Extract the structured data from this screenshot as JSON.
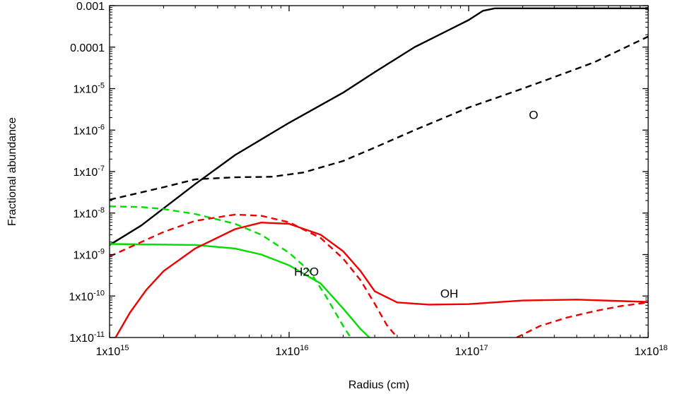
{
  "chart_data": {
    "type": "line",
    "xlabel": "Radius (cm)",
    "ylabel": "Fractional abundance",
    "x_scale": "log",
    "y_scale": "log",
    "xlim": [
      1000000000000000.0,
      1e+18
    ],
    "ylim": [
      1e-11,
      0.001
    ],
    "grid": false,
    "x_ticks": [
      {
        "value": 1000000000000000.0,
        "base": "1x10",
        "exp": "15"
      },
      {
        "value": 1e+16,
        "base": "1x10",
        "exp": "16"
      },
      {
        "value": 1e+17,
        "base": "1x10",
        "exp": "17"
      },
      {
        "value": 1e+18,
        "base": "1x10",
        "exp": "18"
      }
    ],
    "y_ticks": [
      {
        "value": 0.001,
        "label": "0.001"
      },
      {
        "value": 0.0001,
        "label": "0.0001"
      },
      {
        "value": 1e-05,
        "base": "1x10",
        "exp": "-5"
      },
      {
        "value": 1e-06,
        "base": "1x10",
        "exp": "-6"
      },
      {
        "value": 1e-07,
        "base": "1x10",
        "exp": "-7"
      },
      {
        "value": 1e-08,
        "base": "1x10",
        "exp": "-8"
      },
      {
        "value": 1e-09,
        "base": "1x10",
        "exp": "-9"
      },
      {
        "value": 1e-10,
        "base": "1x10",
        "exp": "-10"
      },
      {
        "value": 1e-11,
        "base": "1x10",
        "exp": "-11"
      }
    ],
    "annotations": [
      {
        "text": "O",
        "x": 2.3e+17,
        "y": 2.2e-06
      },
      {
        "text": "H2O",
        "x": 1.25e+16,
        "y": 3.7e-10
      },
      {
        "text": "OH",
        "x": 7.8e+16,
        "y": 1.1e-10
      }
    ],
    "series": [
      {
        "color": "#000000",
        "dash": "solid",
        "points": [
          [
            1000000000000000.0,
            1.7e-09
          ],
          [
            1500000000000000.0,
            5e-09
          ],
          [
            2000000000000000.0,
            1.3e-08
          ],
          [
            3000000000000000.0,
            5e-08
          ],
          [
            5000000000000000.0,
            2.5e-07
          ],
          [
            1e+16,
            1.5e-06
          ],
          [
            2e+16,
            8e-06
          ],
          [
            3e+16,
            2.5e-05
          ],
          [
            5e+16,
            0.0001
          ],
          [
            1e+17,
            0.00045
          ],
          [
            1.2e+17,
            0.00075
          ],
          [
            1.4e+17,
            0.00086
          ],
          [
            3e+17,
            0.00086
          ],
          [
            1e+18,
            0.00086
          ]
        ]
      },
      {
        "color": "#000000",
        "dash": "dashed",
        "points": [
          [
            1000000000000000.0,
            2.1e-08
          ],
          [
            2000000000000000.0,
            4.2e-08
          ],
          [
            3000000000000000.0,
            6.5e-08
          ],
          [
            5000000000000000.0,
            7.3e-08
          ],
          [
            8000000000000000.0,
            7.5e-08
          ],
          [
            1.2e+16,
            9.5e-08
          ],
          [
            2e+16,
            1.8e-07
          ],
          [
            3e+16,
            3.8e-07
          ],
          [
            5e+16,
            1e-06
          ],
          [
            1e+17,
            3.5e-06
          ],
          [
            2e+17,
            1e-05
          ],
          [
            3e+17,
            1.9e-05
          ],
          [
            5e+17,
            4.3e-05
          ],
          [
            1e+18,
            0.00018
          ]
        ]
      },
      {
        "color": "#00dd00",
        "dash": "solid",
        "points": [
          [
            1000000000000000.0,
            1.8e-09
          ],
          [
            3000000000000000.0,
            1.7e-09
          ],
          [
            5000000000000000.0,
            1.4e-09
          ],
          [
            7000000000000000.0,
            1e-09
          ],
          [
            1e+16,
            5.5e-10
          ],
          [
            1.5e+16,
            2e-10
          ],
          [
            2e+16,
            5e-11
          ],
          [
            2.5e+16,
            1.6e-11
          ],
          [
            2.8e+16,
            1e-11
          ]
        ]
      },
      {
        "color": "#00dd00",
        "dash": "dashed",
        "points": [
          [
            1000000000000000.0,
            1.45e-08
          ],
          [
            1500000000000000.0,
            1.4e-08
          ],
          [
            2000000000000000.0,
            1.25e-08
          ],
          [
            3000000000000000.0,
            9.5e-09
          ],
          [
            5000000000000000.0,
            5.5e-09
          ],
          [
            7000000000000000.0,
            3e-09
          ],
          [
            1e+16,
            1.1e-09
          ],
          [
            1.3e+16,
            4e-10
          ],
          [
            1.6e+16,
            1e-10
          ],
          [
            2e+16,
            1.9e-11
          ],
          [
            2.2e+16,
            1e-11
          ]
        ]
      },
      {
        "color": "#ee0000",
        "dash": "solid",
        "points": [
          [
            1080000000000000.0,
            1e-11
          ],
          [
            1300000000000000.0,
            4e-11
          ],
          [
            1600000000000000.0,
            1.4e-10
          ],
          [
            2000000000000000.0,
            4e-10
          ],
          [
            3000000000000000.0,
            1.4e-09
          ],
          [
            5000000000000000.0,
            4.1e-09
          ],
          [
            7000000000000000.0,
            5.9e-09
          ],
          [
            1e+16,
            5.5e-09
          ],
          [
            1.5e+16,
            3e-09
          ],
          [
            2e+16,
            1.2e-09
          ],
          [
            2.5e+16,
            4e-10
          ],
          [
            3e+16,
            1.3e-10
          ],
          [
            4e+16,
            7e-11
          ],
          [
            6e+16,
            6.2e-11
          ],
          [
            1e+17,
            6.4e-11
          ],
          [
            2e+17,
            7.8e-11
          ],
          [
            4e+17,
            8.2e-11
          ],
          [
            1e+18,
            7.2e-11
          ]
        ]
      },
      {
        "color": "#ee0000",
        "dash": "dashed",
        "points": [
          [
            1000000000000000.0,
            9e-10
          ],
          [
            1500000000000000.0,
            2e-09
          ],
          [
            2000000000000000.0,
            3.5e-09
          ],
          [
            3000000000000000.0,
            6.5e-09
          ],
          [
            5000000000000000.0,
            9.2e-09
          ],
          [
            7000000000000000.0,
            8.6e-09
          ],
          [
            1e+16,
            6e-09
          ],
          [
            1.5e+16,
            2.5e-09
          ],
          [
            2e+16,
            8e-10
          ],
          [
            2.5e+16,
            2.4e-10
          ],
          [
            3e+16,
            6.5e-11
          ],
          [
            3.5e+16,
            2e-11
          ],
          [
            4e+16,
            1e-11
          ]
        ]
      },
      {
        "color": "#ee0000",
        "dash": "dashed",
        "points": [
          [
            1.85e+17,
            1e-11
          ],
          [
            2.5e+17,
            1.9e-11
          ],
          [
            3.5e+17,
            3e-11
          ],
          [
            5e+17,
            4.3e-11
          ],
          [
            7e+17,
            5.7e-11
          ],
          [
            1e+18,
            7e-11
          ]
        ]
      }
    ]
  }
}
